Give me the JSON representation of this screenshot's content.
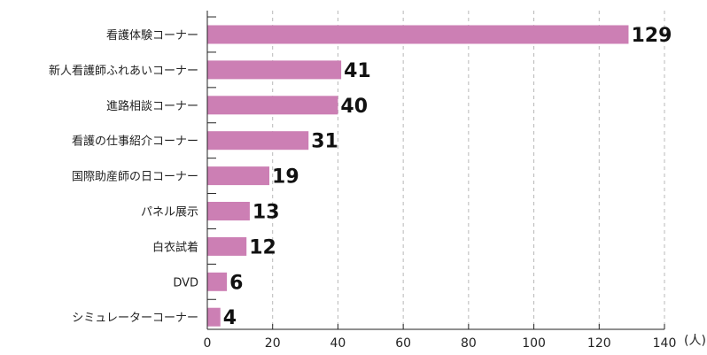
{
  "chart_data": {
    "type": "bar",
    "orientation": "horizontal",
    "categories": [
      "看護体験コーナー",
      "新人看護師ふれあいコーナー",
      "進路相談コーナー",
      "看護の仕事紹介コーナー",
      "国際助産師の日コーナー",
      "パネル展示",
      "白衣試着",
      "DVD",
      "シミュレーターコーナー"
    ],
    "values": [
      129,
      41,
      40,
      31,
      19,
      13,
      12,
      6,
      4
    ],
    "x_ticks": [
      "0",
      "20",
      "40",
      "60",
      "80",
      "100",
      "120",
      "140"
    ],
    "xlim": [
      0,
      140
    ],
    "unit_label": "(人)",
    "grid": "vertical dashed",
    "bar_color": "#cc7fb4"
  }
}
